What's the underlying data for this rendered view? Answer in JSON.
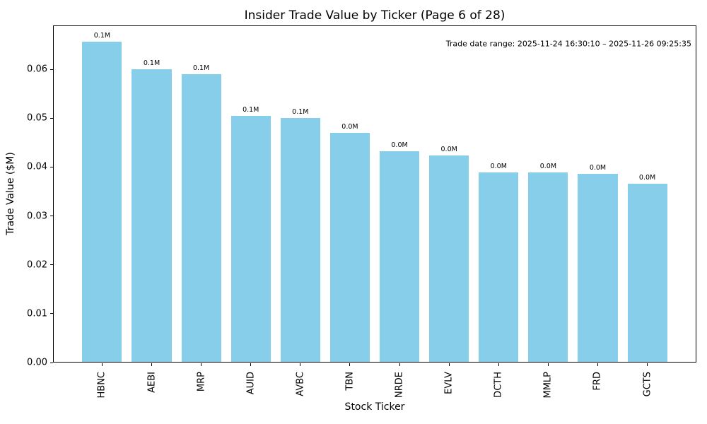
{
  "chart_data": {
    "type": "bar",
    "title": "Insider Trade Value by Ticker (Page 6 of 28)",
    "xlabel": "Stock Ticker",
    "ylabel": "Trade Value ($M)",
    "categories": [
      "HBNC",
      "AEBI",
      "MRP",
      "AUID",
      "AVBC",
      "TBN",
      "NRDE",
      "EVLV",
      "DCTH",
      "MMLP",
      "FRD",
      "GCTS"
    ],
    "values": [
      0.0657,
      0.06,
      0.059,
      0.0505,
      0.05,
      0.047,
      0.0433,
      0.0424,
      0.0389,
      0.0389,
      0.0386,
      0.0366
    ],
    "bar_labels": [
      "0.1M",
      "0.1M",
      "0.1M",
      "0.1M",
      "0.1M",
      "0.0M",
      "0.0M",
      "0.0M",
      "0.0M",
      "0.0M",
      "0.0M",
      "0.0M"
    ],
    "annotation": "Trade date range: 2025-11-24 16:30:10 – 2025-11-26 09:25:35",
    "y_tick_labels": [
      "0.00",
      "0.01",
      "0.02",
      "0.03",
      "0.04",
      "0.05",
      "0.06"
    ],
    "y_tick_values": [
      0.0,
      0.01,
      0.02,
      0.03,
      0.04,
      0.05,
      0.06
    ],
    "ylim": [
      0,
      0.069
    ],
    "bar_color": "#87CEEB",
    "grid": false,
    "legend_position": null
  }
}
